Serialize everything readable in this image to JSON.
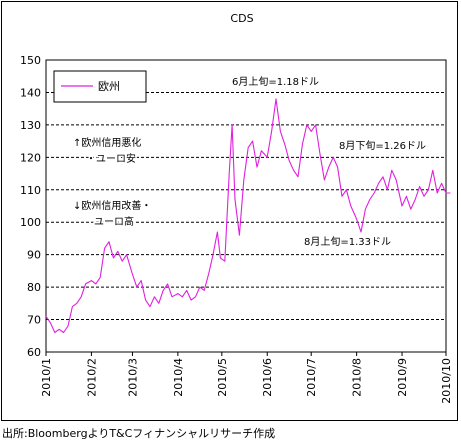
{
  "chart_data": {
    "type": "line",
    "title": "CDS",
    "xlabel": "",
    "ylabel": "",
    "ylim": [
      60,
      150
    ],
    "yticks": [
      60,
      70,
      80,
      90,
      100,
      110,
      120,
      130,
      140,
      150
    ],
    "xlim": [
      "2010/1",
      "2010/10"
    ],
    "xticks": [
      "2010/1",
      "2010/2",
      "2010/3",
      "2010/4",
      "2010/5",
      "2010/6",
      "2010/7",
      "2010/8",
      "2010/9",
      "2010/10"
    ],
    "grid": "horizontal dashed",
    "legend": "top-left",
    "series": [
      {
        "name": "欧州",
        "color": "#e020e0",
        "points": [
          [
            "2010/1/1",
            71
          ],
          [
            "2010/1/4",
            69
          ],
          [
            "2010/1/7",
            66
          ],
          [
            "2010/1/10",
            67
          ],
          [
            "2010/1/13",
            66
          ],
          [
            "2010/1/16",
            68
          ],
          [
            "2010/1/19",
            74
          ],
          [
            "2010/1/22",
            75
          ],
          [
            "2010/1/25",
            77
          ],
          [
            "2010/1/28",
            81
          ],
          [
            "2010/2/1",
            82
          ],
          [
            "2010/2/4",
            81
          ],
          [
            "2010/2/7",
            83
          ],
          [
            "2010/2/10",
            92
          ],
          [
            "2010/2/13",
            94
          ],
          [
            "2010/2/16",
            89
          ],
          [
            "2010/2/19",
            91
          ],
          [
            "2010/2/22",
            88
          ],
          [
            "2010/2/25",
            90
          ],
          [
            "2010/3/1",
            84
          ],
          [
            "2010/3/4",
            80
          ],
          [
            "2010/3/7",
            82
          ],
          [
            "2010/3/10",
            76
          ],
          [
            "2010/3/13",
            74
          ],
          [
            "2010/3/16",
            77
          ],
          [
            "2010/3/19",
            75
          ],
          [
            "2010/3/22",
            79
          ],
          [
            "2010/3/25",
            81
          ],
          [
            "2010/3/28",
            77
          ],
          [
            "2010/4/1",
            78
          ],
          [
            "2010/4/4",
            77
          ],
          [
            "2010/4/7",
            79
          ],
          [
            "2010/4/10",
            76
          ],
          [
            "2010/4/13",
            77
          ],
          [
            "2010/4/16",
            80
          ],
          [
            "2010/4/19",
            79
          ],
          [
            "2010/4/22",
            84
          ],
          [
            "2010/4/25",
            90
          ],
          [
            "2010/4/28",
            97
          ],
          [
            "2010/4/30",
            89
          ],
          [
            "2010/5/3",
            88
          ],
          [
            "2010/5/6",
            115
          ],
          [
            "2010/5/8",
            130
          ],
          [
            "2010/5/10",
            107
          ],
          [
            "2010/5/13",
            96
          ],
          [
            "2010/5/16",
            113
          ],
          [
            "2010/5/19",
            123
          ],
          [
            "2010/5/22",
            125
          ],
          [
            "2010/5/25",
            117
          ],
          [
            "2010/5/28",
            122
          ],
          [
            "2010/6/1",
            120
          ],
          [
            "2010/6/4",
            128
          ],
          [
            "2010/6/7",
            138
          ],
          [
            "2010/6/10",
            128
          ],
          [
            "2010/6/13",
            124
          ],
          [
            "2010/6/16",
            119
          ],
          [
            "2010/6/19",
            116
          ],
          [
            "2010/6/22",
            114
          ],
          [
            "2010/6/25",
            124
          ],
          [
            "2010/6/28",
            130
          ],
          [
            "2010/7/1",
            128
          ],
          [
            "2010/7/4",
            130
          ],
          [
            "2010/7/7",
            121
          ],
          [
            "2010/7/10",
            113
          ],
          [
            "2010/7/13",
            117
          ],
          [
            "2010/7/16",
            120
          ],
          [
            "2010/7/19",
            117
          ],
          [
            "2010/7/22",
            108
          ],
          [
            "2010/7/25",
            110
          ],
          [
            "2010/7/28",
            105
          ],
          [
            "2010/8/1",
            101
          ],
          [
            "2010/8/4",
            97
          ],
          [
            "2010/8/7",
            104
          ],
          [
            "2010/8/10",
            107
          ],
          [
            "2010/8/13",
            109
          ],
          [
            "2010/8/16",
            112
          ],
          [
            "2010/8/19",
            114
          ],
          [
            "2010/8/22",
            110
          ],
          [
            "2010/8/25",
            116
          ],
          [
            "2010/8/28",
            113
          ],
          [
            "2010/9/1",
            105
          ],
          [
            "2010/9/4",
            108
          ],
          [
            "2010/9/7",
            104
          ],
          [
            "2010/9/10",
            107
          ],
          [
            "2010/9/13",
            111
          ],
          [
            "2010/9/16",
            108
          ],
          [
            "2010/9/19",
            110
          ],
          [
            "2010/9/22",
            116
          ],
          [
            "2010/9/25",
            109
          ],
          [
            "2010/9/28",
            112
          ],
          [
            "2010/10/1",
            109
          ],
          [
            "2010/10/4",
            109
          ]
        ]
      }
    ],
    "annotations": [
      {
        "text": "6月上旬=1.18ドル"
      },
      {
        "text": "8月下旬=1.26ドル"
      },
      {
        "text": "8月上旬=1.33ドル"
      },
      {
        "text": "↑欧州信用悪化"
      },
      {
        "text": "・ユーロ安"
      },
      {
        "text": "↓欧州信用改善・"
      },
      {
        "text": "ユーロ高"
      }
    ],
    "source": "出所:BloombergよりT&Cフィナンシャルリサーチ作成"
  }
}
